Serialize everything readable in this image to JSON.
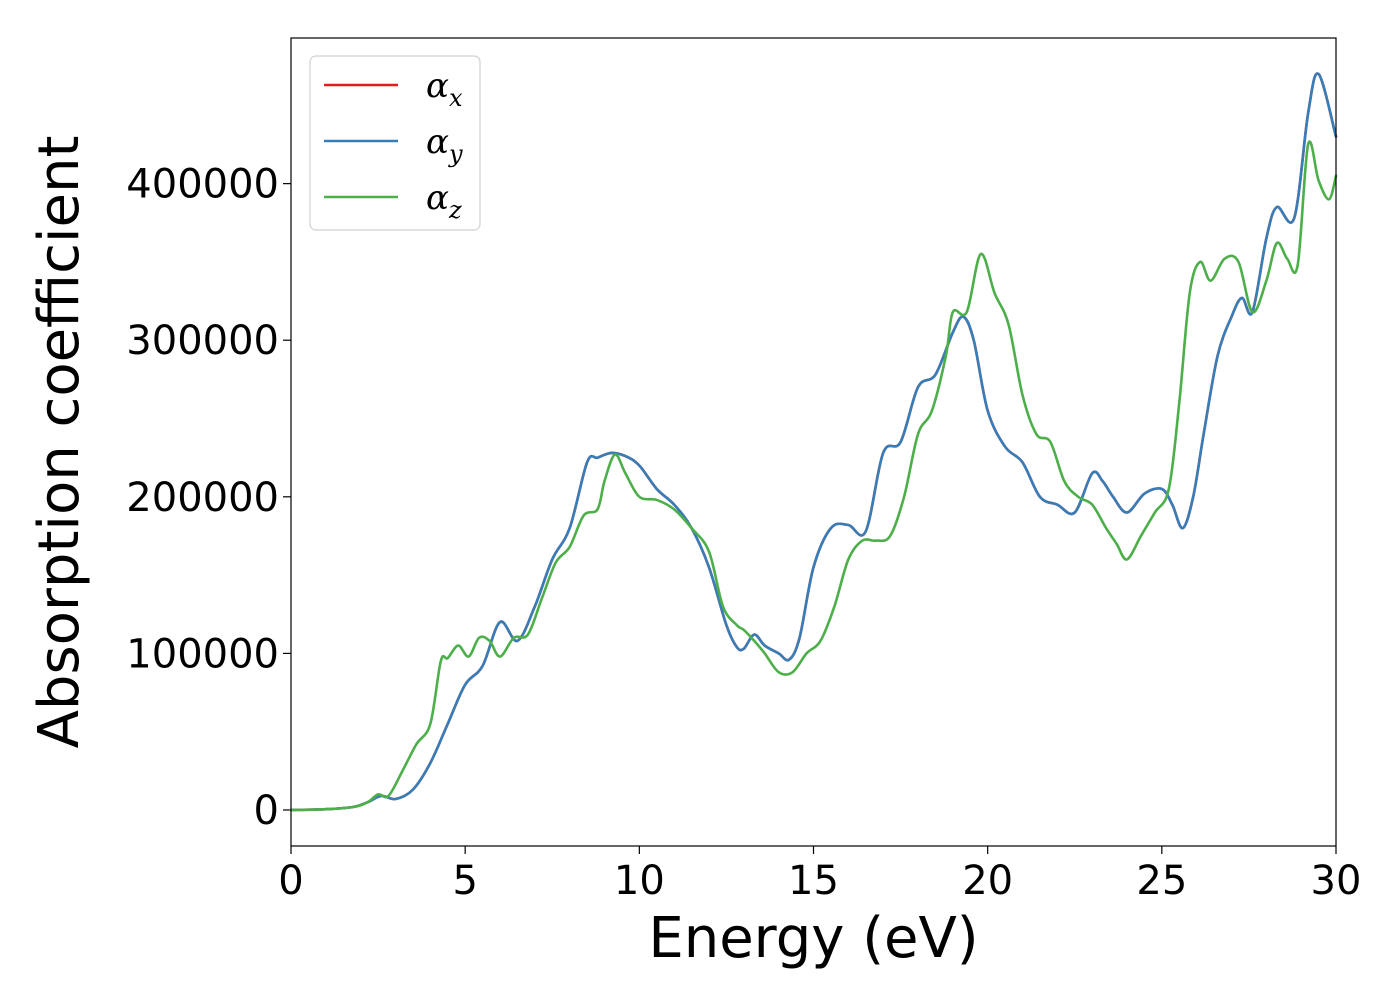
{
  "chart_data": {
    "type": "line",
    "xlabel": "Energy (eV)",
    "ylabel": "Absorption coefficient",
    "xlim": [
      0,
      30
    ],
    "ylim": [
      -23000,
      493000
    ],
    "xticks": [
      0,
      5,
      10,
      15,
      20,
      25,
      30
    ],
    "yticks": [
      0,
      100000,
      200000,
      300000,
      400000
    ],
    "grid": false,
    "legend_position": "top-left",
    "series": [
      {
        "name": "α_x",
        "name_base": "α",
        "name_sub": "x",
        "color": "#e41a1c",
        "x": [
          0,
          1,
          1.8,
          2.2,
          2.6,
          3.0,
          3.5,
          4.0,
          4.5,
          5.0,
          5.5,
          6.0,
          6.5,
          7.0,
          7.5,
          8.0,
          8.5,
          8.8,
          9.2,
          9.6,
          10.0,
          10.5,
          11.0,
          11.5,
          12.0,
          12.5,
          12.8,
          13.0,
          13.3,
          13.6,
          14.0,
          14.3,
          14.6,
          15.0,
          15.5,
          16.0,
          16.5,
          17.0,
          17.5,
          18.0,
          18.5,
          19.0,
          19.3,
          19.6,
          20.0,
          20.5,
          21.0,
          21.5,
          22.0,
          22.5,
          23.0,
          23.3,
          23.6,
          24.0,
          24.5,
          25.0,
          25.3,
          25.6,
          25.9,
          26.2,
          26.6,
          27.0,
          27.3,
          27.6,
          28.0,
          28.3,
          28.8,
          29.2,
          29.5,
          30.0
        ],
        "values": [
          0,
          500,
          2000,
          5000,
          9000,
          7000,
          13000,
          30000,
          55000,
          80000,
          92000,
          120000,
          108000,
          130000,
          160000,
          180000,
          222000,
          225000,
          228000,
          226000,
          220000,
          205000,
          195000,
          180000,
          155000,
          118000,
          104000,
          103000,
          112000,
          105000,
          100000,
          96000,
          110000,
          155000,
          180000,
          182000,
          178000,
          228000,
          235000,
          270000,
          278000,
          305000,
          315000,
          300000,
          255000,
          232000,
          222000,
          200000,
          195000,
          190000,
          215000,
          210000,
          200000,
          190000,
          202000,
          205000,
          195000,
          180000,
          200000,
          240000,
          290000,
          315000,
          327000,
          318000,
          365000,
          385000,
          378000,
          445000,
          470000,
          430000
        ]
      },
      {
        "name": "α_y",
        "name_base": "α",
        "name_sub": "y",
        "color": "#377eb8",
        "x": [
          0,
          1,
          1.8,
          2.2,
          2.6,
          3.0,
          3.5,
          4.0,
          4.5,
          5.0,
          5.5,
          6.0,
          6.5,
          7.0,
          7.5,
          8.0,
          8.5,
          8.8,
          9.2,
          9.6,
          10.0,
          10.5,
          11.0,
          11.5,
          12.0,
          12.5,
          12.8,
          13.0,
          13.3,
          13.6,
          14.0,
          14.3,
          14.6,
          15.0,
          15.5,
          16.0,
          16.5,
          17.0,
          17.5,
          18.0,
          18.5,
          19.0,
          19.3,
          19.6,
          20.0,
          20.5,
          21.0,
          21.5,
          22.0,
          22.5,
          23.0,
          23.3,
          23.6,
          24.0,
          24.5,
          25.0,
          25.3,
          25.6,
          25.9,
          26.2,
          26.6,
          27.0,
          27.3,
          27.6,
          28.0,
          28.3,
          28.8,
          29.2,
          29.5,
          30.0
        ],
        "values": [
          0,
          500,
          2000,
          5000,
          9000,
          7000,
          13000,
          30000,
          55000,
          80000,
          92000,
          120000,
          108000,
          130000,
          160000,
          180000,
          222000,
          225000,
          228000,
          226000,
          220000,
          205000,
          195000,
          180000,
          155000,
          118000,
          104000,
          103000,
          112000,
          105000,
          100000,
          96000,
          110000,
          155000,
          180000,
          182000,
          178000,
          228000,
          235000,
          270000,
          278000,
          305000,
          315000,
          300000,
          255000,
          232000,
          222000,
          200000,
          195000,
          190000,
          215000,
          210000,
          200000,
          190000,
          202000,
          205000,
          195000,
          180000,
          200000,
          240000,
          290000,
          315000,
          327000,
          318000,
          365000,
          385000,
          378000,
          445000,
          470000,
          430000
        ]
      },
      {
        "name": "α_z",
        "name_base": "α",
        "name_sub": "z",
        "color": "#4daf4a",
        "x": [
          0,
          1,
          1.8,
          2.2,
          2.5,
          2.8,
          3.2,
          3.6,
          4.0,
          4.3,
          4.5,
          4.8,
          5.1,
          5.4,
          5.7,
          6.0,
          6.4,
          6.8,
          7.2,
          7.6,
          8.0,
          8.4,
          8.8,
          9.0,
          9.3,
          9.6,
          10.0,
          10.5,
          11.0,
          11.5,
          12.0,
          12.4,
          12.8,
          13.0,
          13.3,
          13.6,
          14.0,
          14.4,
          14.8,
          15.2,
          15.6,
          16.0,
          16.4,
          16.8,
          17.2,
          17.6,
          18.0,
          18.4,
          18.8,
          19.0,
          19.4,
          19.8,
          20.2,
          20.6,
          21.0,
          21.4,
          21.8,
          22.2,
          22.6,
          23.0,
          23.4,
          23.7,
          24.0,
          24.4,
          24.8,
          25.2,
          25.5,
          25.8,
          26.1,
          26.4,
          26.8,
          27.2,
          27.6,
          28.0,
          28.3,
          28.6,
          28.9,
          29.2,
          29.5,
          29.8,
          30.0
        ],
        "values": [
          0,
          500,
          2000,
          5000,
          10000,
          9000,
          25000,
          42000,
          55000,
          95000,
          97000,
          105000,
          98000,
          110000,
          108000,
          98000,
          110000,
          112000,
          135000,
          158000,
          168000,
          188000,
          192000,
          210000,
          227000,
          215000,
          200000,
          198000,
          192000,
          180000,
          165000,
          130000,
          118000,
          115000,
          108000,
          100000,
          88000,
          88000,
          100000,
          108000,
          130000,
          160000,
          172000,
          172000,
          175000,
          200000,
          240000,
          255000,
          290000,
          318000,
          318000,
          355000,
          330000,
          310000,
          265000,
          240000,
          235000,
          210000,
          200000,
          195000,
          180000,
          170000,
          160000,
          175000,
          190000,
          205000,
          260000,
          330000,
          350000,
          338000,
          352000,
          350000,
          318000,
          338000,
          362000,
          352000,
          348000,
          425000,
          402000,
          390000,
          405000
        ]
      }
    ]
  }
}
